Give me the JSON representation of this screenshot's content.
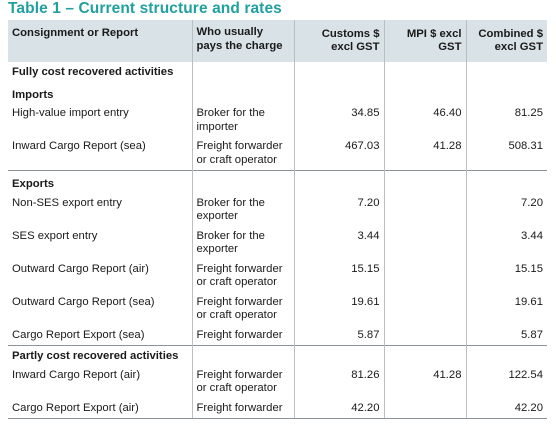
{
  "title": "Table 1 – Current structure and rates",
  "headers": {
    "col1": "Consignment or Report",
    "col2": "Who usually pays the charge",
    "col3": "Customs $ excl GST",
    "col4": "MPI $ excl GST",
    "col5": "Combined $ excl GST"
  },
  "sections": [
    {
      "heading": "Fully cost recovered activities",
      "groups": [
        {
          "heading": "Imports",
          "rows": [
            {
              "item": "High-value import entry",
              "payer": "Broker for the importer",
              "customs": "34.85",
              "mpi": "46.40",
              "combined": "81.25"
            },
            {
              "item": "Inward Cargo Report (sea)",
              "payer": "Freight forwarder or craft operator",
              "customs": "467.03",
              "mpi": "41.28",
              "combined": "508.31"
            }
          ]
        },
        {
          "heading": "Exports",
          "rows": [
            {
              "item": "Non-SES export entry",
              "payer": "Broker for the exporter",
              "customs": "7.20",
              "mpi": "",
              "combined": "7.20"
            },
            {
              "item": "SES export entry",
              "payer": "Broker for the exporter",
              "customs": "3.44",
              "mpi": "",
              "combined": "3.44"
            },
            {
              "item": "Outward Cargo Report (air)",
              "payer": "Freight forwarder or craft operator",
              "customs": "15.15",
              "mpi": "",
              "combined": "15.15"
            },
            {
              "item": "Outward Cargo Report (sea)",
              "payer": "Freight forwarder or craft operator",
              "customs": "19.61",
              "mpi": "",
              "combined": "19.61"
            },
            {
              "item": "Cargo Report Export (sea)",
              "payer": "Freight forwarder",
              "customs": "5.87",
              "mpi": "",
              "combined": "5.87"
            }
          ]
        }
      ]
    },
    {
      "heading": "Partly cost recovered activities",
      "groups": [
        {
          "heading": "",
          "rows": [
            {
              "item": "Inward Cargo Report (air)",
              "payer": "Freight forwarder or craft operator",
              "customs": "81.26",
              "mpi": "41.28",
              "combined": "122.54"
            },
            {
              "item": "Cargo Report Export (air)",
              "payer": "Freight forwarder",
              "customs": "42.20",
              "mpi": "",
              "combined": "42.20"
            }
          ]
        }
      ]
    }
  ]
}
